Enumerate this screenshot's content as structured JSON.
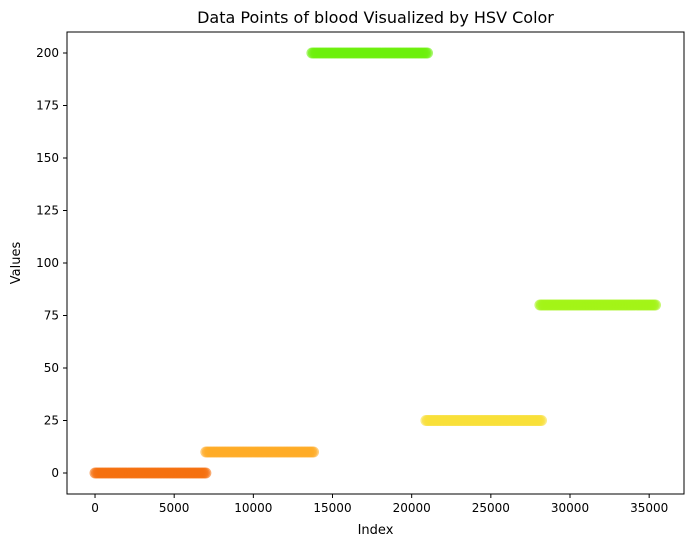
{
  "chart_data": {
    "type": "scatter",
    "title": "Data Points of blood Visualized by HSV Color",
    "xlabel": "Index",
    "ylabel": "Values",
    "xlim": [
      -1770,
      37200
    ],
    "ylim": [
      -10,
      210
    ],
    "xticks": [
      0,
      5000,
      10000,
      15000,
      20000,
      25000,
      30000,
      35000
    ],
    "xtick_labels": [
      "0",
      "5000",
      "10000",
      "15000",
      "20000",
      "25000",
      "30000",
      "35000"
    ],
    "yticks": [
      0,
      25,
      50,
      75,
      100,
      125,
      150,
      175,
      200
    ],
    "ytick_labels": [
      "0",
      "25",
      "50",
      "75",
      "100",
      "125",
      "150",
      "175",
      "200"
    ],
    "grid": false,
    "series": [
      {
        "x_start": 0,
        "x_end": 7000,
        "y": 0,
        "color": "#f5700f"
      },
      {
        "x_start": 7000,
        "x_end": 13800,
        "y": 10,
        "color": "#ffab27"
      },
      {
        "x_start": 13700,
        "x_end": 21000,
        "y": 200,
        "color": "#6cf00c"
      },
      {
        "x_start": 20900,
        "x_end": 28200,
        "y": 25,
        "color": "#f9e038"
      },
      {
        "x_start": 28100,
        "x_end": 35400,
        "y": 80,
        "color": "#a4f317"
      }
    ]
  }
}
